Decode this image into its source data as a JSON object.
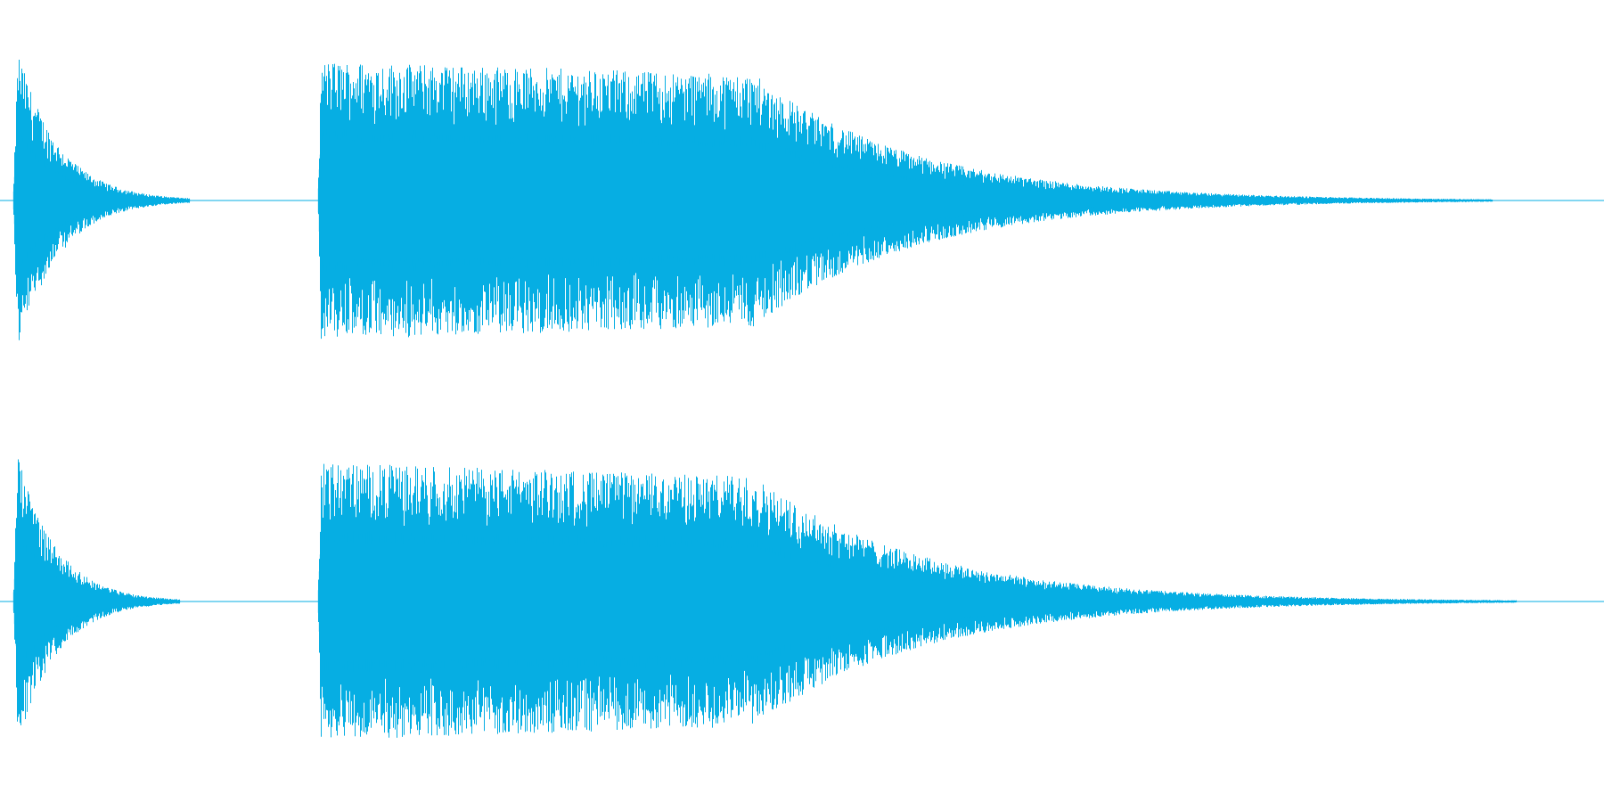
{
  "waveform": {
    "color": "#06aee3",
    "background": "#ffffff",
    "channel_count": 2,
    "channels": [
      {
        "name": "channel-1",
        "segments": [
          {
            "start": 0.008,
            "end": 0.118,
            "peak": 0.97,
            "attack": 0.004,
            "decay_shape": "exponential"
          },
          {
            "start": 0.198,
            "end": 0.93,
            "peak": 0.98,
            "sustain_end": 0.47,
            "decay_shape": "long"
          }
        ]
      },
      {
        "name": "channel-2",
        "segments": [
          {
            "start": 0.008,
            "end": 0.112,
            "peak": 0.92,
            "attack": 0.004,
            "decay_shape": "exponential"
          },
          {
            "start": 0.198,
            "end": 0.945,
            "peak": 0.95,
            "sustain_end": 0.47,
            "decay_shape": "long"
          }
        ]
      }
    ]
  }
}
